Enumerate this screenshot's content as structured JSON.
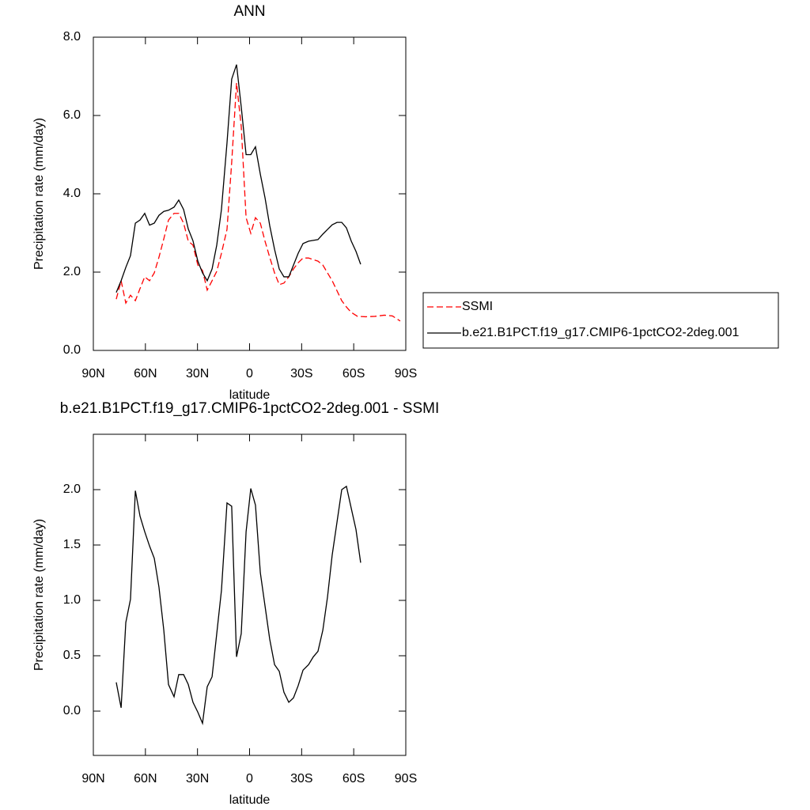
{
  "chart_data": [
    {
      "type": "line",
      "title": "ANN",
      "xlabel": "latitude",
      "ylabel": "Precipitation rate (mm/day)",
      "xlim": [
        90,
        -90
      ],
      "xticks": [
        {
          "value": 90,
          "label": "90N"
        },
        {
          "value": 60,
          "label": "60N"
        },
        {
          "value": 30,
          "label": "30N"
        },
        0,
        {
          "value": -30,
          "label": "30S"
        },
        {
          "value": -60,
          "label": "60S"
        },
        {
          "value": -90,
          "label": "90S"
        }
      ],
      "ylim": [
        0,
        8
      ],
      "yticks": [
        {
          "value": 0,
          "label": "0.0"
        },
        {
          "value": 2,
          "label": "2.0"
        },
        {
          "value": 4,
          "label": "4.0"
        },
        {
          "value": 6,
          "label": "6.0"
        },
        {
          "value": 8,
          "label": "8.0"
        }
      ],
      "legend": "right",
      "series": [
        {
          "name": "SSMI",
          "color": "#ff0000",
          "dash": true,
          "x": [
            76.8,
            74.0,
            71.3,
            68.6,
            65.8,
            63.1,
            60.4,
            57.6,
            54.9,
            52.2,
            49.4,
            46.7,
            43.5,
            40.8,
            38.0,
            35.3,
            32.6,
            29.8,
            27.1,
            24.4,
            21.6,
            18.9,
            16.2,
            13.0,
            10.3,
            7.5,
            4.8,
            2.0,
            -0.7,
            -3.4,
            -6.2,
            -8.9,
            -11.6,
            -14.4,
            -17.1,
            -19.8,
            -22.6,
            -25.3,
            -28.0,
            -30.8,
            -34.0,
            -36.7,
            -39.4,
            -42.2,
            -44.9,
            -47.6,
            -50.4,
            -53.1,
            -55.8,
            -58.6,
            -62.2,
            -66.8,
            -72.2,
            -77.7,
            -82.3,
            -86.8
          ],
          "values": [
            1.31,
            1.78,
            1.21,
            1.41,
            1.27,
            1.58,
            1.88,
            1.78,
            1.98,
            2.38,
            2.85,
            3.33,
            3.5,
            3.5,
            3.25,
            2.79,
            2.69,
            2.18,
            2.04,
            1.54,
            1.78,
            2.02,
            2.48,
            3.09,
            4.8,
            6.83,
            5.72,
            3.39,
            2.99,
            3.39,
            3.25,
            2.79,
            2.38,
            1.98,
            1.68,
            1.72,
            1.88,
            2.08,
            2.24,
            2.36,
            2.36,
            2.32,
            2.28,
            2.18,
            1.98,
            1.78,
            1.52,
            1.27,
            1.11,
            0.97,
            0.87,
            0.86,
            0.87,
            0.9,
            0.88,
            0.75
          ]
        },
        {
          "name": "b.e21.B1PCT.f19_g17.CMIP6-1pctCO2-2deg.001",
          "color": "#000000",
          "dash": false,
          "x": [
            76.8,
            74.0,
            71.3,
            68.6,
            65.8,
            63.1,
            60.4,
            57.6,
            54.9,
            52.2,
            49.4,
            46.7,
            43.5,
            40.8,
            38.0,
            35.3,
            32.6,
            29.8,
            27.1,
            24.4,
            21.6,
            18.9,
            16.2,
            13.0,
            10.3,
            7.5,
            4.8,
            2.0,
            -0.7,
            -3.4,
            -6.2,
            -8.9,
            -11.6,
            -14.4,
            -17.1,
            -19.8,
            -22.6,
            -25.3,
            -28.0,
            -30.8,
            -34.0,
            -36.7,
            -39.4,
            -42.2,
            -44.9,
            -47.6,
            -50.4,
            -53.1,
            -55.8,
            -58.6,
            -61.3,
            -64.0
          ],
          "values": [
            1.48,
            1.78,
            2.12,
            2.42,
            3.25,
            3.33,
            3.5,
            3.2,
            3.25,
            3.45,
            3.55,
            3.58,
            3.66,
            3.84,
            3.6,
            3.1,
            2.8,
            2.28,
            1.98,
            1.78,
            2.08,
            2.69,
            3.6,
            5.3,
            6.93,
            7.3,
            6.22,
            5.0,
            5.0,
            5.2,
            4.5,
            3.9,
            3.19,
            2.58,
            2.08,
            1.88,
            1.88,
            2.18,
            2.48,
            2.73,
            2.79,
            2.81,
            2.83,
            2.97,
            3.09,
            3.21,
            3.27,
            3.27,
            3.13,
            2.79,
            2.53,
            2.2
          ]
        }
      ]
    },
    {
      "type": "line",
      "title": "b.e21.B1PCT.f19_g17.CMIP6-1pctCO2-2deg.001 - SSMI",
      "xlabel": "latitude",
      "ylabel": "Precipitation rate (mm/day)",
      "xlim": [
        90,
        -90
      ],
      "xticks": [
        {
          "value": 90,
          "label": "90N"
        },
        {
          "value": 60,
          "label": "60N"
        },
        {
          "value": 30,
          "label": "30N"
        },
        0,
        {
          "value": -30,
          "label": "30S"
        },
        {
          "value": -60,
          "label": "60S"
        },
        {
          "value": -90,
          "label": "90S"
        }
      ],
      "ylim": [
        -0.4,
        2.5
      ],
      "yticks": [
        {
          "value": 0,
          "label": "0.0"
        },
        0.5,
        {
          "value": 1,
          "label": "1.0"
        },
        1.5,
        {
          "value": 2,
          "label": "2.0"
        }
      ],
      "series": [
        {
          "color": "#000000",
          "dash": false,
          "x": [
            76.8,
            74.0,
            71.3,
            68.6,
            65.8,
            63.1,
            60.4,
            57.6,
            54.9,
            52.2,
            49.4,
            46.7,
            43.5,
            40.8,
            38.0,
            35.3,
            32.6,
            29.8,
            27.1,
            24.4,
            21.6,
            18.9,
            16.2,
            13.0,
            10.3,
            7.5,
            4.8,
            2.0,
            -0.7,
            -3.4,
            -6.2,
            -8.9,
            -11.6,
            -14.4,
            -17.1,
            -19.8,
            -22.6,
            -25.3,
            -28.0,
            -30.8,
            -34.0,
            -36.7,
            -39.4,
            -42.2,
            -44.9,
            -47.6,
            -50.4,
            -53.1,
            -55.8,
            -58.6,
            -61.3,
            -64.0
          ],
          "values": [
            0.26,
            0.03,
            0.8,
            1.01,
            1.99,
            1.76,
            1.62,
            1.49,
            1.38,
            1.12,
            0.73,
            0.24,
            0.13,
            0.33,
            0.33,
            0.24,
            0.08,
            -0.01,
            -0.11,
            0.22,
            0.31,
            0.7,
            1.09,
            1.88,
            1.85,
            0.49,
            0.7,
            1.62,
            2.01,
            1.86,
            1.25,
            0.95,
            0.65,
            0.42,
            0.36,
            0.17,
            0.08,
            0.12,
            0.23,
            0.37,
            0.42,
            0.49,
            0.54,
            0.73,
            1.03,
            1.41,
            1.71,
            2.0,
            2.03,
            1.83,
            1.64,
            1.34
          ]
        }
      ]
    }
  ]
}
